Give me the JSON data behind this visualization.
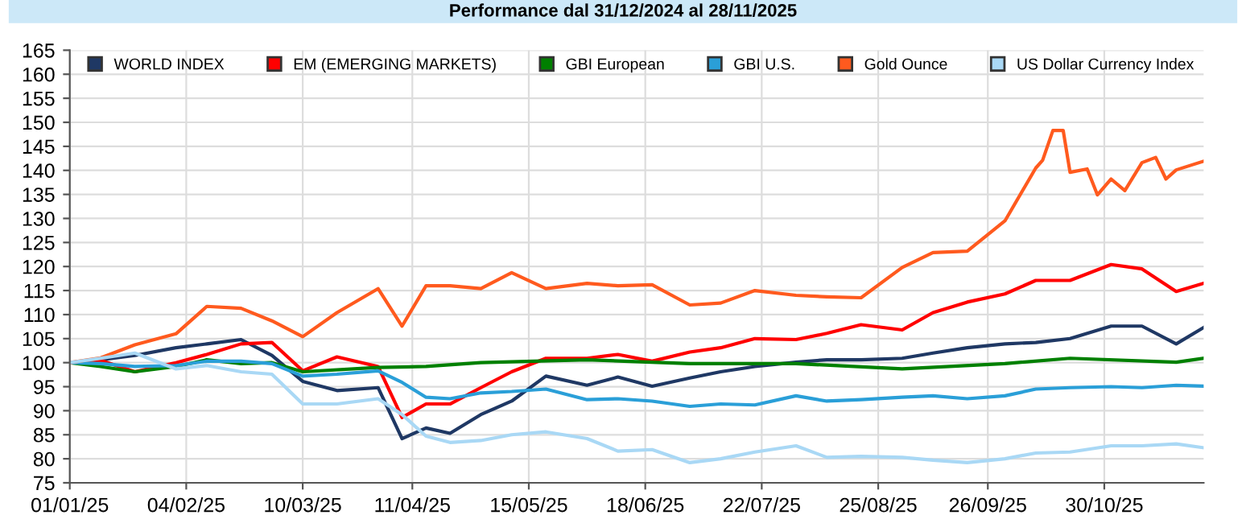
{
  "chart_data": {
    "type": "line",
    "title": "Performance dal 31/12/2024 al 28/11/2025",
    "x": [
      "2025-01-01",
      "2025-01-10",
      "2025-01-20",
      "2025-02-01",
      "2025-02-10",
      "2025-02-20",
      "2025-03-01",
      "2025-03-10",
      "2025-03-20",
      "2025-04-01",
      "2025-04-08",
      "2025-04-15",
      "2025-04-22",
      "2025-05-01",
      "2025-05-10",
      "2025-05-20",
      "2025-06-01",
      "2025-06-10",
      "2025-06-20",
      "2025-07-01",
      "2025-07-10",
      "2025-07-20",
      "2025-08-01",
      "2025-08-10",
      "2025-08-20",
      "2025-09-01",
      "2025-09-10",
      "2025-09-20",
      "2025-10-01",
      "2025-10-10",
      "2025-10-20",
      "2025-11-01",
      "2025-11-10",
      "2025-11-20",
      "2025-11-28"
    ],
    "series": [
      {
        "name": "WORLD INDEX",
        "color": "#1f3864",
        "values": [
          100,
          100.6,
          101.5,
          103.1,
          103.9,
          104.8,
          101.5,
          96.1,
          94.2,
          94.8,
          84.2,
          86.4,
          85.3,
          89.2,
          92,
          97.2,
          95.3,
          97,
          95.1,
          96.8,
          98.1,
          99.2,
          100.1,
          100.6,
          100.6,
          100.9,
          102,
          103.1,
          103.9,
          104.2,
          105,
          107.6,
          107.6,
          103.9,
          107.3
        ]
      },
      {
        "name": "EM (EMERGING MARKETS)",
        "color": "#ff0000",
        "values": [
          100,
          100.5,
          98.1,
          100,
          101.7,
          103.9,
          104.2,
          98.3,
          101.2,
          99.2,
          88.6,
          91.4,
          91.4,
          94.8,
          98.1,
          100.9,
          100.9,
          101.7,
          100.3,
          102.2,
          103.1,
          105,
          104.8,
          106.1,
          107.9,
          106.8,
          110.4,
          112.6,
          114.3,
          117.1,
          117.1,
          120.4,
          119.5,
          114.8,
          116.5
        ]
      },
      {
        "name": "GBI European",
        "color": "#008000",
        "x": [
          "2025-01-01",
          "2025-01-10",
          "2025-01-20",
          "2025-02-01",
          "2025-02-10",
          "2025-02-20",
          "2025-03-01",
          "2025-03-10",
          "2025-04-01",
          "2025-04-15",
          "2025-05-01",
          "2025-06-01",
          "2025-07-01",
          "2025-08-01",
          "2025-09-01",
          "2025-10-01",
          "2025-10-20",
          "2025-11-20",
          "2025-11-28"
        ],
        "values": [
          100,
          99.2,
          98.1,
          99.2,
          100.6,
          99.8,
          100,
          98.1,
          99,
          99.2,
          100,
          100.6,
          99.8,
          99.8,
          98.7,
          99.8,
          100.9,
          100.1,
          100.9
        ]
      },
      {
        "name": "GBI U.S.",
        "color": "#2a9fd8",
        "values": [
          100,
          99.8,
          99.2,
          99.4,
          100.3,
          100.3,
          99.8,
          97.2,
          97.6,
          98.3,
          95.9,
          92.8,
          92.5,
          93.7,
          94,
          94.5,
          92.3,
          92.5,
          92,
          90.9,
          91.4,
          91.2,
          93.1,
          92,
          92.3,
          92.8,
          93.1,
          92.5,
          93.1,
          94.5,
          94.8,
          95,
          94.8,
          95.3,
          95.1
        ]
      },
      {
        "name": "Gold Ounce",
        "color": "#ff5a1e",
        "x": [
          "2025-01-01",
          "2025-01-10",
          "2025-01-20",
          "2025-02-01",
          "2025-02-10",
          "2025-02-20",
          "2025-03-01",
          "2025-03-10",
          "2025-03-20",
          "2025-04-01",
          "2025-04-08",
          "2025-04-15",
          "2025-04-22",
          "2025-05-01",
          "2025-05-10",
          "2025-05-20",
          "2025-06-01",
          "2025-06-10",
          "2025-06-20",
          "2025-07-01",
          "2025-07-10",
          "2025-07-20",
          "2025-08-01",
          "2025-08-10",
          "2025-08-20",
          "2025-09-01",
          "2025-09-10",
          "2025-09-20",
          "2025-10-01",
          "2025-10-10",
          "2025-10-12",
          "2025-10-15",
          "2025-10-18",
          "2025-10-20",
          "2025-10-25",
          "2025-10-28",
          "2025-11-01",
          "2025-11-05",
          "2025-11-10",
          "2025-11-14",
          "2025-11-17",
          "2025-11-20",
          "2025-11-28"
        ],
        "values": [
          100,
          101,
          103.7,
          106,
          111.7,
          111.3,
          108.7,
          105.4,
          110.4,
          115.4,
          107.6,
          116,
          116,
          115.4,
          118.7,
          115.4,
          116.5,
          116,
          116.2,
          112,
          112.4,
          115,
          114,
          113.7,
          113.5,
          119.8,
          122.9,
          123.2,
          129.5,
          140.5,
          142.1,
          148.3,
          148.3,
          139.6,
          140.3,
          134.9,
          138.2,
          135.8,
          141.6,
          142.7,
          138.2,
          140.1,
          141.9
        ]
      },
      {
        "name": "US Dollar Currency Index",
        "color": "#a9d8f5",
        "values": [
          100,
          100.9,
          102,
          98.7,
          99.4,
          98.1,
          97.6,
          91.4,
          91.4,
          92.5,
          89.2,
          84.7,
          83.4,
          83.8,
          85,
          85.6,
          84.2,
          81.6,
          81.9,
          79.2,
          80,
          81.4,
          82.7,
          80.3,
          80.5,
          80.3,
          79.7,
          79.2,
          80,
          81.2,
          81.4,
          82.7,
          82.7,
          83.1,
          82.3
        ]
      }
    ],
    "xlim": [
      "2025-01-01",
      "2025-11-28"
    ],
    "xticks": [
      {
        "value": "2025-01-01",
        "label": "01/01/25"
      },
      {
        "value": "2025-02-04",
        "label": "04/02/25"
      },
      {
        "value": "2025-03-10",
        "label": "10/03/25"
      },
      {
        "value": "2025-04-11",
        "label": "11/04/25"
      },
      {
        "value": "2025-05-15",
        "label": "15/05/25"
      },
      {
        "value": "2025-06-18",
        "label": "18/06/25"
      },
      {
        "value": "2025-07-22",
        "label": "22/07/25"
      },
      {
        "value": "2025-08-25",
        "label": "25/08/25"
      },
      {
        "value": "2025-09-26",
        "label": "26/09/25"
      },
      {
        "value": "2025-10-30",
        "label": "30/10/25"
      }
    ],
    "ylim": [
      75,
      165
    ],
    "yticks": [
      75,
      80,
      85,
      90,
      95,
      100,
      105,
      110,
      115,
      120,
      125,
      130,
      135,
      140,
      145,
      150,
      155,
      160,
      165
    ],
    "grid": true,
    "legend": "top",
    "line_style": "solid",
    "marker": "none"
  }
}
